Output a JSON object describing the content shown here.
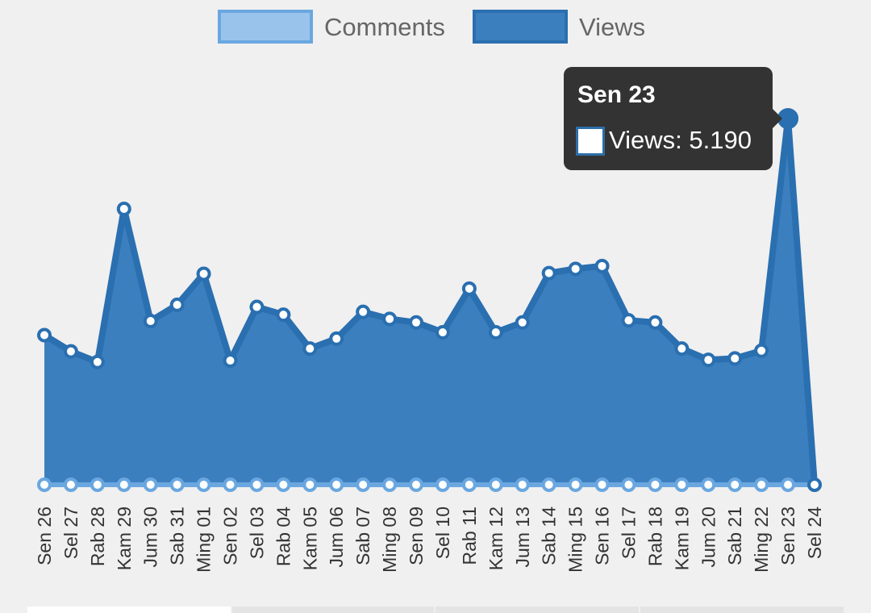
{
  "legend": [
    {
      "label": "Comments",
      "fill": "#9ac3ec",
      "stroke": "#6aa7e0"
    },
    {
      "label": "Views",
      "fill": "#3c7fbe",
      "stroke": "#2a6fb0"
    }
  ],
  "tooltip": {
    "title": "Sen 23",
    "series": "Views",
    "value": "5.190",
    "text": "Views: 5.190"
  },
  "chart_data": {
    "type": "area",
    "x": [
      "Sen 26",
      "Sel 27",
      "Rab 28",
      "Kam 29",
      "Jum 30",
      "Sab 31",
      "Ming 01",
      "Sen 02",
      "Sel 03",
      "Rab 04",
      "Kam 05",
      "Jum 06",
      "Sab 07",
      "Ming 08",
      "Sen 09",
      "Sel 10",
      "Rab 11",
      "Kam 12",
      "Jum 13",
      "Sab 14",
      "Ming 15",
      "Sen 16",
      "Sel 17",
      "Rab 18",
      "Kam 19",
      "Jum 20",
      "Sab 21",
      "Ming 22",
      "Sen 23",
      "Sel 24"
    ],
    "series": [
      {
        "name": "Views",
        "color": "#3c7fbe",
        "line": "#2a6fb0",
        "values": [
          2120,
          1890,
          1740,
          3910,
          2320,
          2550,
          2990,
          1760,
          2520,
          2410,
          1930,
          2070,
          2450,
          2350,
          2300,
          2160,
          2780,
          2160,
          2300,
          3000,
          3060,
          3100,
          2330,
          2300,
          1930,
          1770,
          1790,
          1900,
          5190,
          0
        ]
      },
      {
        "name": "Comments",
        "color": "#9ac3ec",
        "line": "#6aa7e0",
        "values": [
          0,
          0,
          0,
          0,
          0,
          0,
          0,
          0,
          0,
          0,
          0,
          0,
          0,
          0,
          0,
          0,
          0,
          0,
          0,
          0,
          0,
          0,
          0,
          0,
          0,
          0,
          0,
          0,
          0,
          0
        ]
      }
    ],
    "highlight_index": 28,
    "ylim": [
      0,
      5190
    ],
    "grid": false,
    "legend_position": "top-center"
  }
}
